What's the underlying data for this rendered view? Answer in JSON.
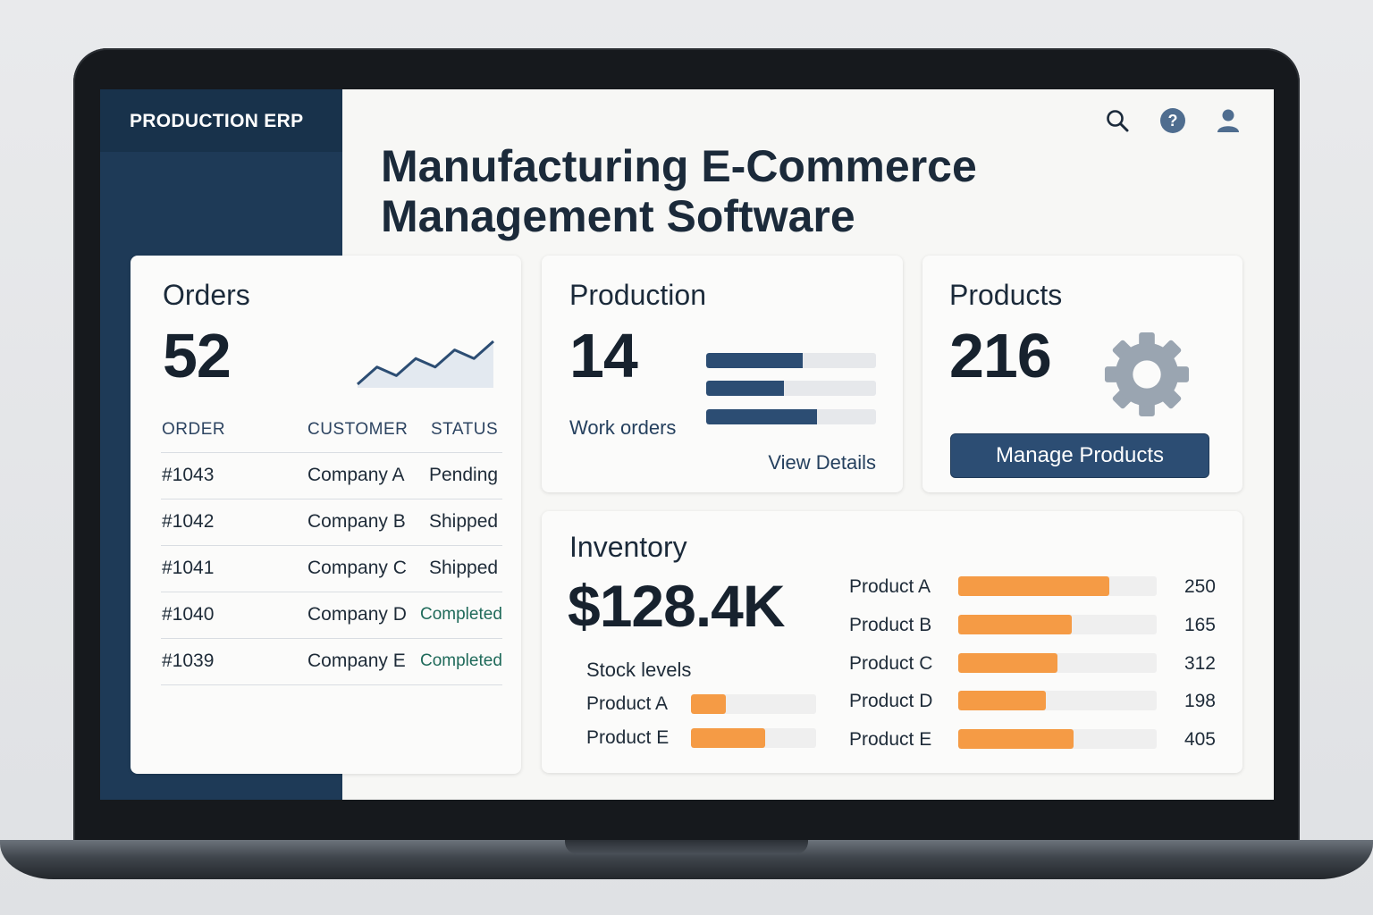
{
  "app": {
    "brand": "PRODUCTION ERP",
    "page_title": "Manufacturing E-Commerce Management Software"
  },
  "header_icons": [
    "search-icon",
    "help-icon",
    "user-icon"
  ],
  "colors": {
    "sidebar": "#1e3a57",
    "accent_blue": "#2c4d73",
    "accent_orange": "#f59b45",
    "completed_green": "#1f6a5a"
  },
  "orders": {
    "title": "Orders",
    "count": "52",
    "sparkline": [
      2,
      4,
      3,
      5,
      4,
      6,
      5,
      7
    ],
    "columns": [
      "ORDER",
      "CUSTOMER",
      "STATUS"
    ],
    "rows": [
      {
        "order": "#1043",
        "customer": "Company A",
        "status": "Pending"
      },
      {
        "order": "#1042",
        "customer": "Company B",
        "status": "Shipped"
      },
      {
        "order": "#1041",
        "customer": "Company C",
        "status": "Shipped"
      },
      {
        "order": "#1040",
        "customer": "Company D",
        "status": "Completed"
      },
      {
        "order": "#1039",
        "customer": "Company E",
        "status": "Completed"
      }
    ]
  },
  "production": {
    "title": "Production",
    "count": "14",
    "subtitle": "Work orders",
    "link": "View Details",
    "progress": [
      0.57,
      0.46,
      0.65
    ]
  },
  "products": {
    "title": "Products",
    "count": "216",
    "button": "Manage Products"
  },
  "inventory": {
    "title": "Inventory",
    "value": "$128.4K",
    "subtitle": "Stock levels",
    "stock_levels": [
      {
        "label": "Product A",
        "level": 0.28
      },
      {
        "label": "Product E",
        "level": 0.59
      }
    ],
    "products": [
      {
        "label": "Product A",
        "value": "250",
        "level": 0.76
      },
      {
        "label": "Product B",
        "value": "165",
        "level": 0.57
      },
      {
        "label": "Product C",
        "value": "312",
        "level": 0.5
      },
      {
        "label": "Product D",
        "value": "198",
        "level": 0.44
      },
      {
        "label": "Product E",
        "value": "405",
        "level": 0.58
      }
    ]
  }
}
